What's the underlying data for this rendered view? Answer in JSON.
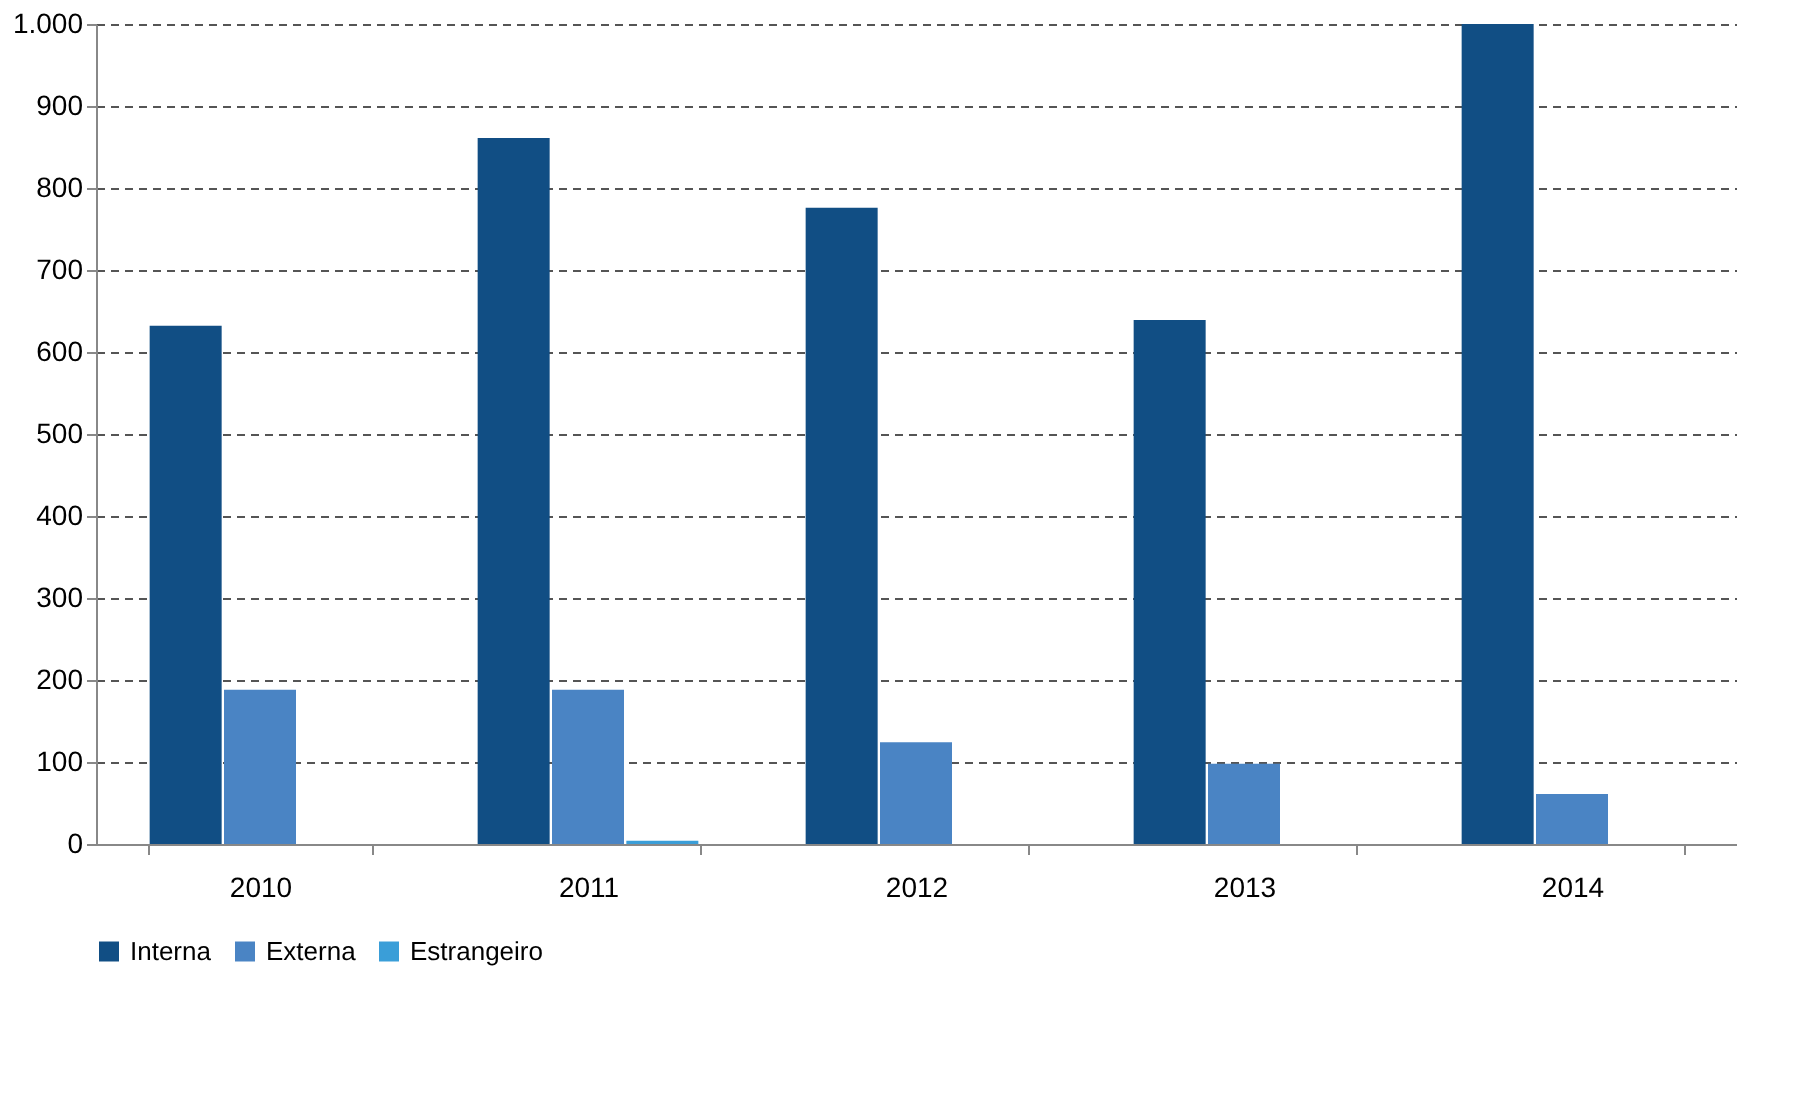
{
  "chart_data": {
    "type": "bar",
    "categories": [
      "2010",
      "2011",
      "2012",
      "2013",
      "2014"
    ],
    "series": [
      {
        "name": "Interna",
        "color": "#114e84",
        "values": [
          632,
          861,
          776,
          639,
          1000
        ]
      },
      {
        "name": "Externa",
        "color": "#4a84c4",
        "values": [
          188,
          188,
          124,
          98,
          61
        ]
      },
      {
        "name": "Estrangeiro",
        "color": "#3a9ed8",
        "values": [
          0,
          4,
          0,
          0,
          0
        ]
      }
    ],
    "ylim": [
      0,
      1000
    ],
    "yticks": [
      0,
      100,
      200,
      300,
      400,
      500,
      600,
      700,
      800,
      900,
      {
        "value": 1000,
        "label": "1.000"
      }
    ],
    "grid": "y",
    "legend": "bottom"
  }
}
